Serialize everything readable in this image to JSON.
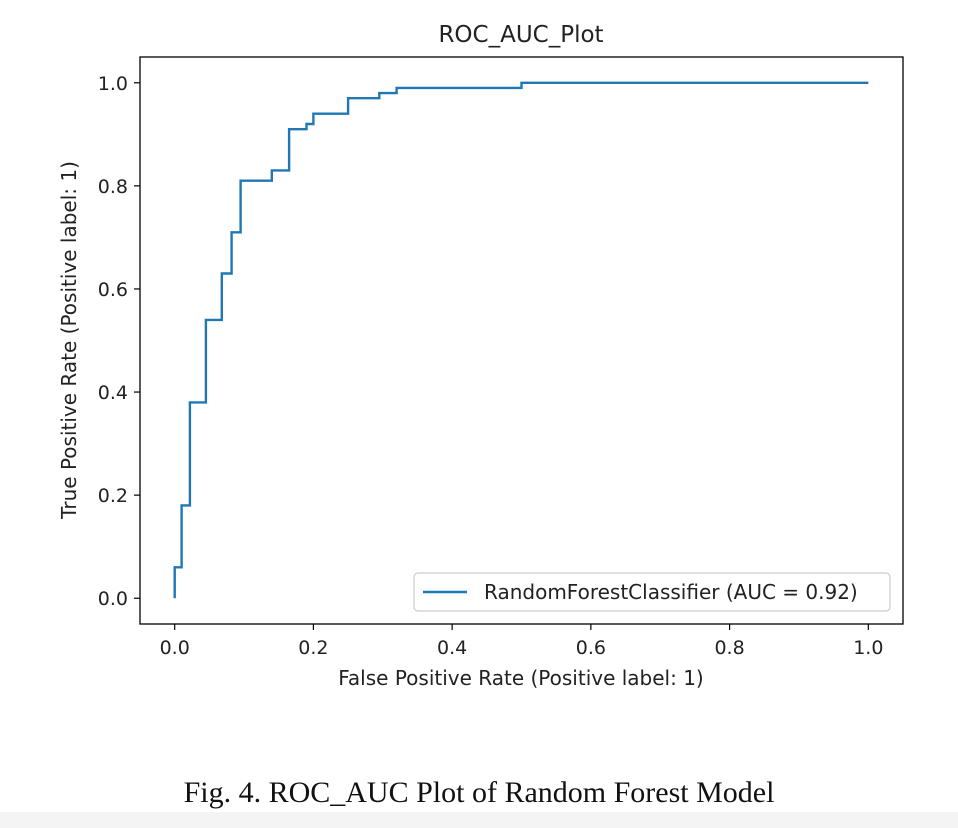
{
  "caption": "Fig. 4. ROC_AUC Plot of Random Forest Model",
  "chart_data": {
    "type": "line",
    "title": "ROC_AUC_Plot",
    "xlabel": "False Positive Rate (Positive label: 1)",
    "ylabel": "True Positive Rate (Positive label: 1)",
    "xlim": [
      -0.05,
      1.05
    ],
    "ylim": [
      -0.05,
      1.05
    ],
    "xticks": [
      "0.0",
      "0.2",
      "0.4",
      "0.6",
      "0.8",
      "1.0"
    ],
    "yticks": [
      "0.0",
      "0.2",
      "0.4",
      "0.6",
      "0.8",
      "1.0"
    ],
    "grid": false,
    "legend_position": "lower-right",
    "series": [
      {
        "name": "RandomForestClassifier (AUC = 0.92)",
        "color": "#1f77b4",
        "step": true,
        "x": [
          0.0,
          0.0,
          0.01,
          0.01,
          0.022,
          0.022,
          0.045,
          0.045,
          0.068,
          0.068,
          0.082,
          0.082,
          0.095,
          0.095,
          0.14,
          0.14,
          0.165,
          0.165,
          0.19,
          0.19,
          0.2,
          0.2,
          0.25,
          0.25,
          0.295,
          0.295,
          0.32,
          0.32,
          0.5,
          0.5,
          1.0
        ],
        "y": [
          0.0,
          0.06,
          0.06,
          0.18,
          0.18,
          0.38,
          0.38,
          0.54,
          0.54,
          0.63,
          0.63,
          0.71,
          0.71,
          0.81,
          0.81,
          0.83,
          0.83,
          0.91,
          0.91,
          0.92,
          0.92,
          0.94,
          0.94,
          0.97,
          0.97,
          0.98,
          0.98,
          0.99,
          0.99,
          1.0,
          1.0
        ]
      }
    ]
  }
}
